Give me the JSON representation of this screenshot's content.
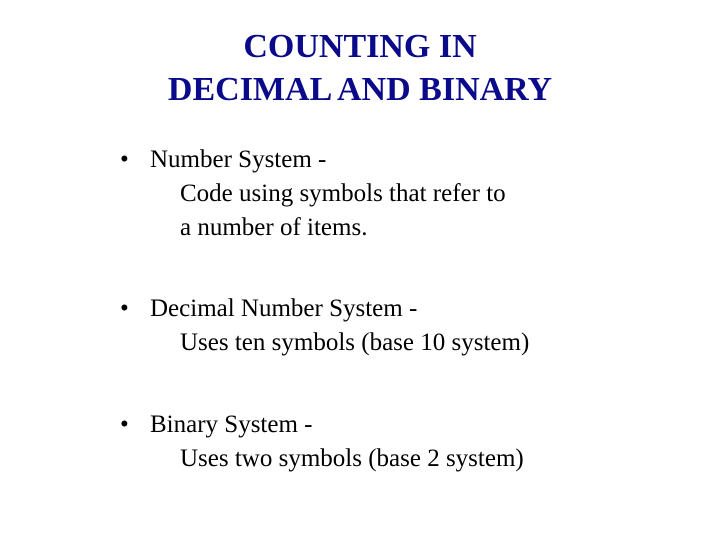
{
  "title": {
    "line1": "COUNTING  IN",
    "line2": "DECIMAL  AND  BINARY",
    "color": "#0a0a8a",
    "fontsize": 34
  },
  "body": {
    "color": "#000000",
    "fontsize": 25
  },
  "bullets": [
    {
      "term": "Number System -",
      "desc": "Code using symbols that refer to",
      "desc2": "a number of items."
    },
    {
      "term": "Decimal Number System -",
      "desc": "Uses ten symbols (base 10 system)"
    },
    {
      "term": "Binary System -",
      "desc": "Uses two symbols (base 2 system)"
    }
  ]
}
